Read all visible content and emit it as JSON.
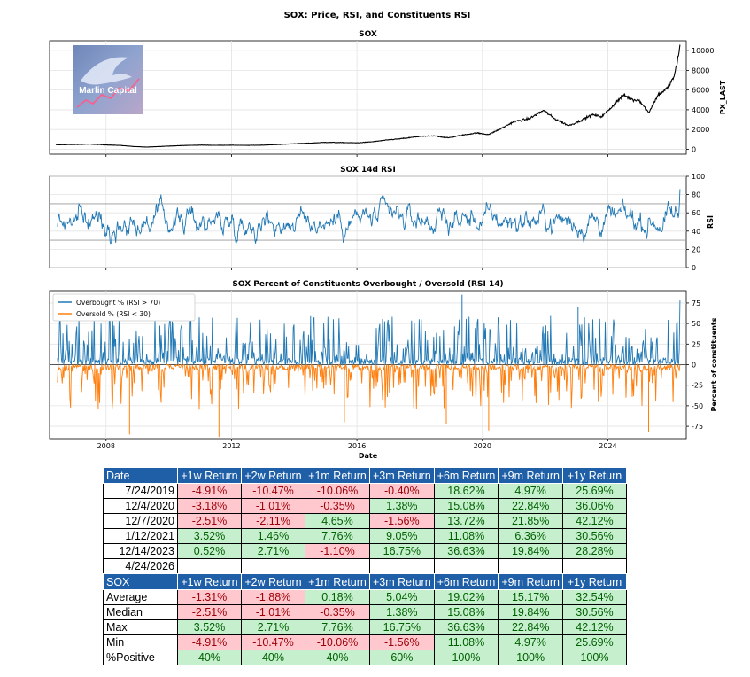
{
  "page_title": "SOX: Price, RSI, and Constituents RSI",
  "chart_data": [
    {
      "type": "line",
      "title": "SOX",
      "ylabel": "PX_LAST",
      "xlim": [
        2006.2,
        2026.5
      ],
      "ylim": [
        -500,
        11000
      ],
      "yticks": [
        0,
        2000,
        4000,
        6000,
        8000,
        10000
      ],
      "x": [
        2006.4,
        2007.0,
        2007.5,
        2008.0,
        2008.5,
        2008.9,
        2009.3,
        2010.0,
        2010.5,
        2011.0,
        2011.5,
        2012.0,
        2012.5,
        2013.0,
        2013.5,
        2014.0,
        2014.5,
        2015.0,
        2015.5,
        2016.0,
        2016.5,
        2017.0,
        2017.5,
        2018.0,
        2018.5,
        2018.9,
        2019.3,
        2019.8,
        2020.2,
        2020.6,
        2021.0,
        2021.5,
        2021.95,
        2022.3,
        2022.75,
        2023.0,
        2023.5,
        2023.8,
        2024.0,
        2024.5,
        2024.8,
        2025.0,
        2025.3,
        2025.6,
        2025.9,
        2026.1,
        2026.2,
        2026.3
      ],
      "y": [
        450,
        480,
        520,
        440,
        380,
        270,
        220,
        320,
        380,
        420,
        400,
        410,
        390,
        420,
        480,
        560,
        620,
        700,
        680,
        650,
        760,
        950,
        1100,
        1300,
        1350,
        1150,
        1400,
        1650,
        1500,
        2100,
        2800,
        3100,
        3950,
        3100,
        2400,
        2700,
        3500,
        3300,
        3900,
        5500,
        5000,
        5000,
        3700,
        5500,
        6200,
        7300,
        8500,
        10600
      ],
      "series": [
        {
          "color": "#000000"
        }
      ],
      "grid": true,
      "logo_text": "Marlin Capital"
    },
    {
      "type": "line",
      "title": "SOX 14d RSI",
      "ylabel": "RSI",
      "xlim": [
        2006.2,
        2026.5
      ],
      "ylim": [
        0,
        100
      ],
      "yticks": [
        0,
        20,
        40,
        60,
        80,
        100
      ],
      "reference_lines": [
        30,
        70
      ],
      "series": [
        {
          "color": "#1f77b4"
        }
      ],
      "grid": true
    },
    {
      "type": "area",
      "title": "SOX Percent of Constituents Overbought / Oversold (RSI 14)",
      "xlabel": "Date",
      "ylabel": "Percent of constituents",
      "xlim": [
        2006.2,
        2026.5
      ],
      "ylim": [
        -90,
        90
      ],
      "yticks": [
        -75,
        -50,
        -25,
        0,
        25,
        50,
        75
      ],
      "xticks": [
        2008,
        2012,
        2016,
        2020,
        2024
      ],
      "series": [
        {
          "name": "Overbought % (RSI > 70)",
          "color": "#1f77b4"
        },
        {
          "name": "Oversold % (RSI < 30)",
          "color": "#ff7f0e"
        }
      ],
      "legend": "top-left",
      "grid": true
    }
  ],
  "tables": {
    "returns": {
      "columns": [
        "Date",
        "+1w Return",
        "+2w Return",
        "+1m Return",
        "+3m Return",
        "+6m Return",
        "+9m Return",
        "+1y Return"
      ],
      "rows": [
        [
          "7/24/2019",
          "-4.91%",
          "-10.47%",
          "-10.06%",
          "-0.40%",
          "18.62%",
          "4.97%",
          "25.69%"
        ],
        [
          "12/4/2020",
          "-3.18%",
          "-1.01%",
          "-0.35%",
          "1.38%",
          "15.08%",
          "22.84%",
          "36.06%"
        ],
        [
          "12/7/2020",
          "-2.51%",
          "-2.11%",
          "4.65%",
          "-1.56%",
          "13.72%",
          "21.85%",
          "42.12%"
        ],
        [
          "1/12/2021",
          "3.52%",
          "1.46%",
          "7.76%",
          "9.05%",
          "11.08%",
          "6.36%",
          "30.56%"
        ],
        [
          "12/14/2023",
          "0.52%",
          "2.71%",
          "-1.10%",
          "16.75%",
          "36.63%",
          "19.84%",
          "28.28%"
        ],
        [
          "4/24/2026",
          "",
          "",
          "",
          "",
          "",
          "",
          ""
        ]
      ]
    },
    "stats": {
      "columns": [
        "SOX",
        "+1w Return",
        "+2w Return",
        "+1m Return",
        "+3m Return",
        "+6m Return",
        "+9m Return",
        "+1y Return"
      ],
      "rows": [
        [
          "Average",
          "-1.31%",
          "-1.88%",
          "0.18%",
          "5.04%",
          "19.02%",
          "15.17%",
          "32.54%"
        ],
        [
          "Median",
          "-2.51%",
          "-1.01%",
          "-0.35%",
          "1.38%",
          "15.08%",
          "19.84%",
          "30.56%"
        ],
        [
          "Max",
          "3.52%",
          "2.71%",
          "7.76%",
          "16.75%",
          "36.63%",
          "22.84%",
          "42.12%"
        ],
        [
          "Min",
          "-4.91%",
          "-10.47%",
          "-10.06%",
          "-1.56%",
          "11.08%",
          "4.97%",
          "25.69%"
        ],
        [
          "%Positive",
          "40%",
          "40%",
          "40%",
          "60%",
          "100%",
          "100%",
          "100%"
        ]
      ]
    }
  }
}
